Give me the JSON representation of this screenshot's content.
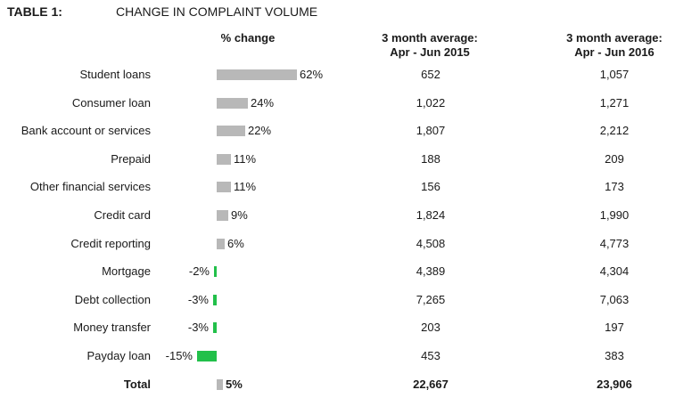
{
  "table_label": "TABLE 1:",
  "title": "CHANGE IN COMPLAINT VOLUME",
  "headers": {
    "pct": "% change",
    "col1_line1": "3 month average:",
    "col1_line2": "Apr - Jun 2015",
    "col2_line1": "3 month average:",
    "col2_line2": "Apr - Jun 2016"
  },
  "colors": {
    "positive": "#b8b8b8",
    "negative": "#22c04a"
  },
  "chart_data": {
    "type": "bar",
    "title": "CHANGE IN COMPLAINT VOLUME",
    "xlabel": "% change",
    "ylabel": "",
    "categories": [
      "Student loans",
      "Consumer loan",
      "Bank account or services",
      "Prepaid",
      "Other financial services",
      "Credit card",
      "Credit reporting",
      "Mortgage",
      "Debt collection",
      "Money transfer",
      "Payday loan",
      "Total"
    ],
    "values": [
      62,
      24,
      22,
      11,
      11,
      9,
      6,
      -2,
      -3,
      -3,
      -15,
      5
    ],
    "labels": [
      "62%",
      "24%",
      "22%",
      "11%",
      "11%",
      "9%",
      "6%",
      "-2%",
      "-3%",
      "-3%",
      "-15%",
      "5%"
    ],
    "avg_2015": [
      "652",
      "1,022",
      "1,807",
      "188",
      "156",
      "1,824",
      "4,508",
      "4,389",
      "7,265",
      "203",
      "453",
      "22,667"
    ],
    "avg_2016": [
      "1,057",
      "1,271",
      "2,212",
      "209",
      "173",
      "1,990",
      "4,773",
      "4,304",
      "7,063",
      "197",
      "383",
      "23,906"
    ]
  }
}
